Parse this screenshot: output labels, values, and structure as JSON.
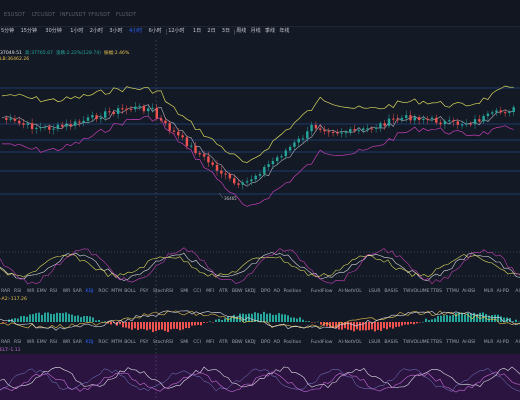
{
  "top_symbols": [
    "ESUSDT",
    "LTCUSDT",
    "INFLUSDT",
    "YFIUSDT",
    "FLUSDT"
  ],
  "timeframes": [
    {
      "label": "5分钟",
      "active": false
    },
    {
      "label": "15分钟",
      "active": false
    },
    {
      "label": "30分钟",
      "active": false
    },
    {
      "label": "1小时",
      "active": false
    },
    {
      "label": "2小时",
      "active": false
    },
    {
      "label": "3小时",
      "active": false
    },
    {
      "label": "4小时",
      "active": true
    },
    {
      "label": "6小时",
      "active": false
    },
    {
      "label": "12小时",
      "active": false
    },
    {
      "label": "1日",
      "active": false
    },
    {
      "label": "2日",
      "active": false
    },
    {
      "label": "3日",
      "active": false
    },
    {
      "label": "周线",
      "active": false
    },
    {
      "label": "月线",
      "active": false
    },
    {
      "label": "季线",
      "active": false
    },
    {
      "label": "年线",
      "active": false
    }
  ],
  "price_info": {
    "line1": [
      "37049.51",
      "高:37765.67",
      "涨跌:2.22%(128.74)",
      "振幅:2.46%"
    ],
    "line2": "LB:36462.26"
  },
  "low_marker": "36465",
  "indicator_rows": [
    [
      "RAR",
      "RSI",
      "WR",
      "EMV",
      "RSI",
      "WR",
      "SAR",
      "KDJ",
      "ROC",
      "MTM",
      "BOLL",
      "PSY",
      "StochRSI",
      "SMI",
      "CCI",
      "MFI",
      "ATR",
      "BBW",
      "SKDJ",
      "DPO",
      "AO",
      "Position",
      "FundFlow",
      "AI-NetVOL",
      "LSUR",
      "BASIS",
      "TWVOLUME",
      "TTBS",
      "TTMU",
      "AI-BSI",
      "MLR",
      "AI-PD",
      "AI-FDI",
      "AI-LI"
    ],
    [
      "RAR",
      "RSI",
      "WR",
      "EMV",
      "RSI",
      "WR",
      "SAR",
      "KDJ",
      "ROC",
      "MTM",
      "BOLL",
      "PSY",
      "StochRSI",
      "SMI",
      "CCI",
      "MFI",
      "ATR",
      "BBW",
      "SKDJ",
      "DPO",
      "AO",
      "Position",
      "FundFlow",
      "AI-NetVOL",
      "LSUR",
      "BASIS",
      "TWVOLUME",
      "TTBS",
      "TTMU",
      "AI-BSI",
      "MLR",
      "AI-PD",
      "AI-FDI",
      "AI-LI"
    ]
  ],
  "active_indicator": "KDJ",
  "macd_label": "-A2:-117.26",
  "bottom_label": "ELT:-1.11",
  "colors": {
    "up": "#26a69a",
    "down": "#ef5350",
    "accent": "#2962ff",
    "band_yellow": "#d8d85a",
    "band_magenta": "#c23fb4",
    "band_white": "#d8d8e0",
    "hline": "#2e6fd6"
  }
}
